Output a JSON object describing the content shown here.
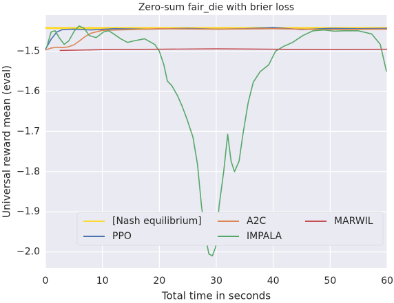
{
  "chart_data": {
    "type": "line",
    "title": "Zero-sum fair_die with brier loss",
    "xlabel": "Total time in seconds",
    "ylabel": "Universal reward mean (eval)",
    "xlim": [
      0,
      60
    ],
    "ylim": [
      -2.04,
      -1.41
    ],
    "xticks": [
      0,
      10,
      20,
      30,
      40,
      50,
      60
    ],
    "yticks": [
      {
        "value": -2.0,
        "label": "−2.0"
      },
      {
        "value": -1.9,
        "label": "−1.9"
      },
      {
        "value": -1.8,
        "label": "−1.8"
      },
      {
        "value": -1.7,
        "label": "−1.7"
      },
      {
        "value": -1.6,
        "label": "−1.6"
      },
      {
        "value": -1.5,
        "label": "−1.5"
      }
    ],
    "grid": true,
    "legend": "lower center",
    "legend_columns": 3,
    "series": [
      {
        "name": "[Nash equilibrium]",
        "color": "#ffd92f",
        "x": [
          0,
          60
        ],
        "values": [
          -1.442,
          -1.442
        ]
      },
      {
        "name": "PPO",
        "color": "#4c72b0",
        "x": [
          0,
          1,
          2,
          3,
          5,
          8,
          12,
          18,
          25,
          30,
          35,
          40,
          45,
          50,
          55,
          60
        ],
        "values": [
          -1.495,
          -1.47,
          -1.452,
          -1.446,
          -1.445,
          -1.447,
          -1.444,
          -1.445,
          -1.443,
          -1.445,
          -1.444,
          -1.441,
          -1.446,
          -1.443,
          -1.444,
          -1.443
        ]
      },
      {
        "name": "A2C",
        "color": "#dd8452",
        "x": [
          0,
          1,
          2,
          3,
          4,
          5,
          6,
          7,
          8,
          10,
          15,
          20,
          30,
          40,
          50,
          60
        ],
        "values": [
          -1.497,
          -1.492,
          -1.49,
          -1.491,
          -1.489,
          -1.484,
          -1.474,
          -1.463,
          -1.455,
          -1.448,
          -1.446,
          -1.444,
          -1.445,
          -1.444,
          -1.446,
          -1.445
        ]
      },
      {
        "name": "IMPALA",
        "color": "#55a868",
        "x": [
          0.2,
          1,
          1.7,
          2.4,
          3.3,
          4.1,
          5.1,
          5.9,
          6.8,
          7.7,
          8.9,
          10.2,
          11.1,
          12,
          13.2,
          14.4,
          15.6,
          17.4,
          19.2,
          20,
          20.8,
          21.4,
          22.2,
          23.2,
          24,
          24.9,
          25.9,
          26.7,
          27.4,
          28.1,
          28.7,
          29.3,
          29.9,
          30.5,
          31.3,
          32,
          32.6,
          33.2,
          34,
          34.7,
          35.6,
          36.5,
          37.7,
          39.2,
          40.4,
          41.8,
          43.4,
          45.2,
          47,
          48.9,
          50.7,
          52.5,
          54.9,
          57.3,
          58.8,
          59.9
        ],
        "values": [
          -1.491,
          -1.452,
          -1.449,
          -1.466,
          -1.483,
          -1.474,
          -1.449,
          -1.437,
          -1.443,
          -1.461,
          -1.466,
          -1.452,
          -1.449,
          -1.457,
          -1.469,
          -1.478,
          -1.474,
          -1.469,
          -1.483,
          -1.5,
          -1.534,
          -1.574,
          -1.586,
          -1.611,
          -1.637,
          -1.671,
          -1.714,
          -1.782,
          -1.885,
          -1.962,
          -2.005,
          -2.01,
          -1.988,
          -1.885,
          -1.8,
          -1.707,
          -1.774,
          -1.8,
          -1.774,
          -1.705,
          -1.628,
          -1.577,
          -1.551,
          -1.534,
          -1.5,
          -1.488,
          -1.478,
          -1.461,
          -1.449,
          -1.447,
          -1.45,
          -1.449,
          -1.449,
          -1.457,
          -1.483,
          -1.551
        ]
      },
      {
        "name": "MARWIL",
        "color": "#c44e52",
        "x": [
          2.5,
          10,
          20,
          30,
          40,
          50,
          60
        ],
        "values": [
          -1.498,
          -1.496,
          -1.495,
          -1.494,
          -1.495,
          -1.496,
          -1.495
        ]
      }
    ]
  }
}
